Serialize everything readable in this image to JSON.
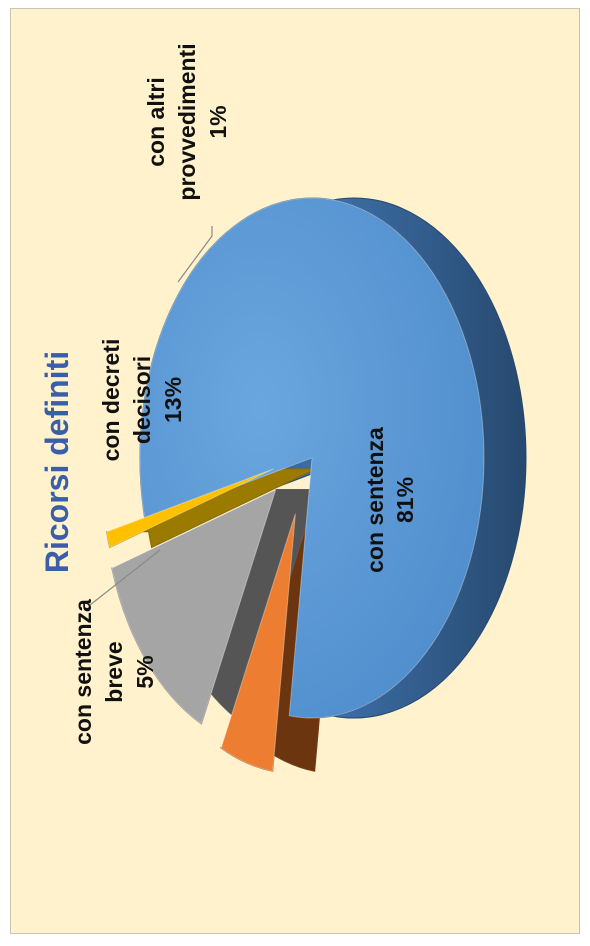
{
  "chart_data": {
    "type": "pie",
    "title": "Ricorsi definiti",
    "categories": [
      "con sentenza",
      "con sentenza breve",
      "con decreti decisori",
      "con altri provvedimenti"
    ],
    "values": [
      81,
      5,
      13,
      1
    ],
    "labels": [
      {
        "lines": [
          "con sentenza",
          "81%"
        ]
      },
      {
        "lines": [
          "con sentenza",
          "breve",
          "5%"
        ]
      },
      {
        "lines": [
          "con decreti",
          "decisori",
          "13%"
        ]
      },
      {
        "lines": [
          "con altri",
          "provvedimenti",
          "1%"
        ]
      }
    ],
    "colors": [
      "#5b9bd5",
      "#ed7d31",
      "#a5a5a5",
      "#ffc000"
    ],
    "legend": "none",
    "style": "3d-exploded"
  }
}
